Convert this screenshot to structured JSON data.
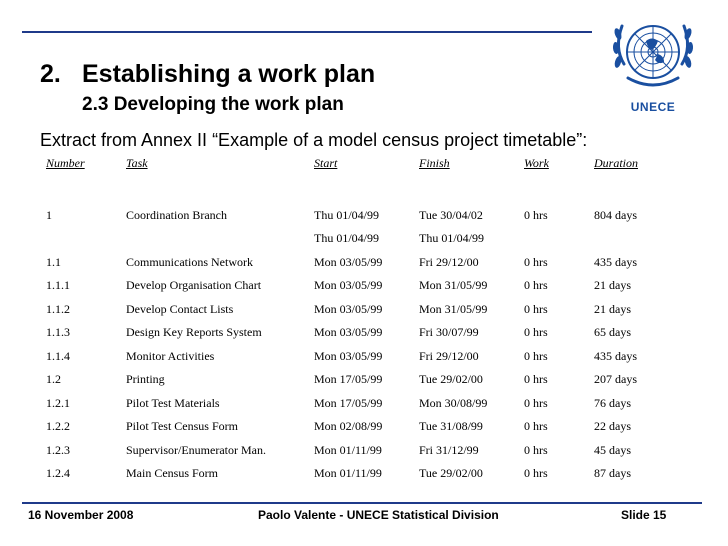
{
  "logo": {
    "text": "UNECE"
  },
  "title": {
    "number": "2.",
    "text": "Establishing a work plan"
  },
  "subtitle": "2.3 Developing the work plan",
  "extract": "Extract from Annex II “Example of a model census project timetable”:",
  "table": {
    "headers": [
      "Number",
      "Task",
      "Start",
      "Finish",
      "Work",
      "Duration"
    ],
    "rows": [
      [
        "",
        "",
        "",
        "",
        "",
        ""
      ],
      [
        "1",
        "Coordination Branch",
        "Thu 01/04/99",
        "Tue 30/04/02",
        "0 hrs",
        "804 days"
      ],
      [
        "",
        "",
        "Thu 01/04/99",
        "Thu 01/04/99",
        "",
        ""
      ],
      [
        "1.1",
        "Communications Network",
        "Mon 03/05/99",
        "Fri 29/12/00",
        "0 hrs",
        "435 days"
      ],
      [
        "1.1.1",
        "Develop Organisation Chart",
        "Mon 03/05/99",
        "Mon 31/05/99",
        "0 hrs",
        "21 days"
      ],
      [
        "1.1.2",
        "Develop Contact Lists",
        "Mon 03/05/99",
        "Mon 31/05/99",
        "0 hrs",
        "21 days"
      ],
      [
        "1.1.3",
        "Design Key Reports System",
        "Mon 03/05/99",
        "Fri 30/07/99",
        "0 hrs",
        "65 days"
      ],
      [
        "1.1.4",
        "Monitor Activities",
        "Mon 03/05/99",
        "Fri 29/12/00",
        "0 hrs",
        "435 days"
      ],
      [
        "1.2",
        "Printing",
        "Mon 17/05/99",
        "Tue 29/02/00",
        "0 hrs",
        "207 days"
      ],
      [
        "1.2.1",
        "Pilot Test Materials",
        "Mon 17/05/99",
        "Mon 30/08/99",
        "0 hrs",
        "76 days"
      ],
      [
        "1.2.2",
        "Pilot Test Census Form",
        "Mon 02/08/99",
        "Tue 31/08/99",
        "0 hrs",
        "22 days"
      ],
      [
        "1.2.3",
        "Supervisor/Enumerator Man.",
        "Mon 01/11/99",
        "Fri 31/12/99",
        "0 hrs",
        "45 days"
      ],
      [
        "1.2.4",
        "Main Census Form",
        "Mon 01/11/99",
        "Tue 29/02/00",
        "0 hrs",
        "87 days"
      ]
    ]
  },
  "footer": {
    "date": "16 November 2008",
    "center": "Paolo Valente - UNECE Statistical Division",
    "slide": "Slide 15"
  },
  "colors": {
    "accent": "#1f3a8a",
    "logo": "#1a4fa0"
  }
}
